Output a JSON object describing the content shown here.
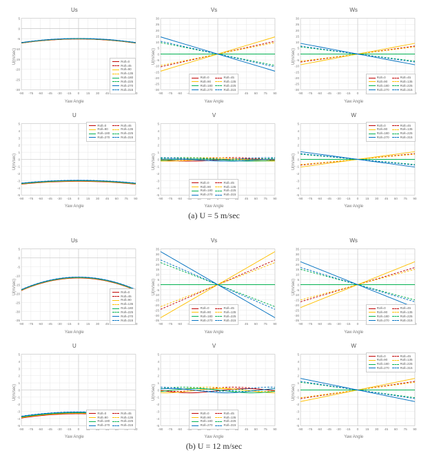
{
  "global": {
    "xlabel": "Yaw Angle",
    "ylabel": "U(m/sec)",
    "xticks": [
      -90,
      -75,
      -60,
      -45,
      -30,
      -15,
      0,
      15,
      30,
      45,
      60,
      75,
      90
    ],
    "bg": "#ffffff",
    "grid_color": "#e6e6e6",
    "axis_color": "#bfbfbf",
    "tick_fontsize": 5,
    "label_fontsize": 6,
    "title_fontsize": 8
  },
  "roll_series": [
    {
      "name": "Roll=0",
      "color": "#c00000",
      "dash": "solid"
    },
    {
      "name": "Roll=45",
      "color": "#c00000",
      "dash": "dash"
    },
    {
      "name": "Roll=90",
      "color": "#ffc000",
      "dash": "solid"
    },
    {
      "name": "Roll=135",
      "color": "#ffc000",
      "dash": "dash"
    },
    {
      "name": "Roll=180",
      "color": "#00b050",
      "dash": "solid"
    },
    {
      "name": "Roll=225",
      "color": "#00b050",
      "dash": "dash"
    },
    {
      "name": "Roll=270",
      "color": "#0070c0",
      "dash": "solid"
    },
    {
      "name": "Roll=315",
      "color": "#0070c0",
      "dash": "dash"
    }
  ],
  "figures": [
    {
      "caption": "(a) U = 5 m/sec",
      "panels": [
        {
          "id": "a-Us",
          "title": "Us",
          "ylim": [
            -30,
            5
          ],
          "ytick_step": 5,
          "curve": "cosh_down",
          "base": -5.0,
          "amp": -2.0,
          "spread": 0.3,
          "legend_pos": "br-1col"
        },
        {
          "id": "a-Vs",
          "title": "Vs",
          "ylim": [
            -30,
            30
          ],
          "ytick_step": 5,
          "curve": "fan",
          "slope": 0.16,
          "legend_pos": "b-2col"
        },
        {
          "id": "a-Ws",
          "title": "Ws",
          "ylim": [
            -30,
            30
          ],
          "ytick_step": 5,
          "curve": "fan",
          "slope": 0.1,
          "legend_pos": "br-2col"
        },
        {
          "id": "a-U",
          "title": "U",
          "ylim": [
            -5,
            5
          ],
          "ytick_step": 1,
          "curve": "cosh_down",
          "base": -3.0,
          "amp": -0.4,
          "spread": 0.15,
          "legend_pos": "tr-2col"
        },
        {
          "id": "a-V",
          "title": "V",
          "ylim": [
            -5,
            5
          ],
          "ytick_step": 1,
          "curve": "flat",
          "noise": 0.3,
          "legend_pos": "b-2col"
        },
        {
          "id": "a-W",
          "title": "W",
          "ylim": [
            -5,
            5
          ],
          "ytick_step": 1,
          "curve": "fan",
          "slope": 0.012,
          "legend_pos": "tr-2col"
        }
      ]
    },
    {
      "caption": "(b) U = 12 m/sec",
      "panels": [
        {
          "id": "b-Us",
          "title": "Us",
          "ylim": [
            -35,
            5
          ],
          "ytick_step": 5,
          "curve": "cosh_down",
          "base": -11.0,
          "amp": -7.0,
          "spread": 0.55,
          "legend_pos": "br-1col"
        },
        {
          "id": "b-Vs",
          "title": "Vs",
          "ylim": [
            -35,
            35
          ],
          "ytick_step": 5,
          "curve": "fan",
          "slope": 0.36,
          "legend_pos": "b-2col"
        },
        {
          "id": "b-Ws",
          "title": "Ws",
          "ylim": [
            -35,
            35
          ],
          "ytick_step": 5,
          "curve": "fan",
          "slope": 0.25,
          "legend_pos": "br-2col"
        },
        {
          "id": "b-U",
          "title": "U",
          "ylim": [
            -5,
            5
          ],
          "ytick_step": 1,
          "curve": "cosh_down",
          "base": -3.2,
          "amp": -0.6,
          "spread": 0.25,
          "legend_pos": "br-2col"
        },
        {
          "id": "b-V",
          "title": "V",
          "ylim": [
            -5,
            5
          ],
          "ytick_step": 1,
          "curve": "flat",
          "noise": 0.6,
          "legend_pos": "b-2col"
        },
        {
          "id": "b-W",
          "title": "W",
          "ylim": [
            -5,
            5
          ],
          "ytick_step": 1,
          "curve": "fan",
          "slope": 0.018,
          "legend_pos": "tr-2col"
        }
      ]
    }
  ]
}
